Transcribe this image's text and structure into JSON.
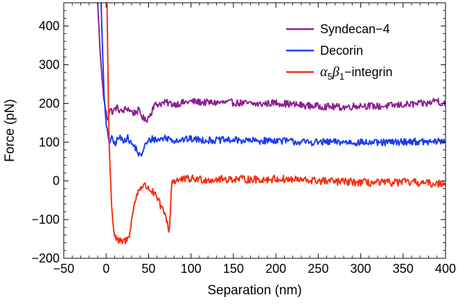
{
  "chart_data": {
    "type": "line",
    "title": "",
    "xlabel": "Separation (nm)",
    "ylabel": "Force (pN)",
    "xlim": [
      -50,
      400
    ],
    "ylim": [
      -200,
      460
    ],
    "x_ticks": [
      -50,
      0,
      50,
      100,
      150,
      200,
      250,
      300,
      350,
      400
    ],
    "y_ticks": [
      -200,
      -100,
      0,
      100,
      200,
      300,
      400
    ],
    "x_tick_labels": [
      "−50",
      "0",
      "50",
      "100",
      "150",
      "200",
      "250",
      "300",
      "350",
      "400"
    ],
    "y_tick_labels": [
      "−200",
      "−100",
      "0",
      "100",
      "200",
      "300",
      "400"
    ],
    "grid": false,
    "legend_position": "top-right",
    "series": [
      {
        "name": "Syndecan−4",
        "color": "#8e1f93",
        "noise": 9,
        "points": [
          [
            -10,
            460
          ],
          [
            -7,
            330
          ],
          [
            -4,
            240
          ],
          [
            -2,
            200
          ],
          [
            0,
            175
          ],
          [
            2,
            160
          ],
          [
            4,
            185
          ],
          [
            8,
            178
          ],
          [
            12,
            190
          ],
          [
            18,
            178
          ],
          [
            25,
            188
          ],
          [
            32,
            175
          ],
          [
            38,
            182
          ],
          [
            42,
            168
          ],
          [
            46,
            155
          ],
          [
            50,
            165
          ],
          [
            53,
            175
          ],
          [
            55,
            192
          ],
          [
            60,
            198
          ],
          [
            70,
            202
          ],
          [
            80,
            198
          ],
          [
            100,
            205
          ],
          [
            120,
            202
          ],
          [
            150,
            202
          ],
          [
            180,
            198
          ],
          [
            200,
            202
          ],
          [
            230,
            195
          ],
          [
            260,
            192
          ],
          [
            280,
            190
          ],
          [
            300,
            195
          ],
          [
            320,
            192
          ],
          [
            340,
            195
          ],
          [
            360,
            198
          ],
          [
            380,
            200
          ],
          [
            390,
            210
          ],
          [
            395,
            200
          ],
          [
            400,
            202
          ]
        ]
      },
      {
        "name": "Decorin",
        "color": "#1a3cf2",
        "noise": 9,
        "points": [
          [
            -6,
            460
          ],
          [
            -4,
            320
          ],
          [
            -2,
            200
          ],
          [
            0,
            145
          ],
          [
            2,
            115
          ],
          [
            4,
            100
          ],
          [
            6,
            110
          ],
          [
            10,
            95
          ],
          [
            15,
            112
          ],
          [
            20,
            105
          ],
          [
            25,
            112
          ],
          [
            30,
            95
          ],
          [
            35,
            85
          ],
          [
            38,
            70
          ],
          [
            41,
            60
          ],
          [
            43,
            78
          ],
          [
            46,
            92
          ],
          [
            50,
            102
          ],
          [
            55,
            110
          ],
          [
            60,
            105
          ],
          [
            70,
            112
          ],
          [
            80,
            105
          ],
          [
            100,
            108
          ],
          [
            120,
            105
          ],
          [
            150,
            105
          ],
          [
            180,
            103
          ],
          [
            200,
            105
          ],
          [
            230,
            100
          ],
          [
            260,
            100
          ],
          [
            290,
            100
          ],
          [
            320,
            98
          ],
          [
            340,
            100
          ],
          [
            360,
            102
          ],
          [
            380,
            100
          ],
          [
            400,
            103
          ]
        ]
      },
      {
        "name": "α₅β₁−integrin",
        "name_main_1": "α",
        "name_sub_1": "5",
        "name_main_2": "β",
        "name_sub_2": "1",
        "name_tail": "−integrin",
        "color": "#f62f10",
        "noise": 10,
        "points": [
          [
            1,
            460
          ],
          [
            2,
            300
          ],
          [
            3,
            150
          ],
          [
            4,
            60
          ],
          [
            6,
            -40
          ],
          [
            8,
            -110
          ],
          [
            10,
            -140
          ],
          [
            13,
            -155
          ],
          [
            18,
            -158
          ],
          [
            22,
            -155
          ],
          [
            26,
            -150
          ],
          [
            29,
            -115
          ],
          [
            32,
            -75
          ],
          [
            35,
            -45
          ],
          [
            38,
            -25
          ],
          [
            41,
            -15
          ],
          [
            45,
            -12
          ],
          [
            50,
            -18
          ],
          [
            55,
            -30
          ],
          [
            60,
            -45
          ],
          [
            65,
            -68
          ],
          [
            70,
            -90
          ],
          [
            73,
            -115
          ],
          [
            74,
            -135
          ],
          [
            75,
            -110
          ],
          [
            76,
            -60
          ],
          [
            77,
            -10
          ],
          [
            78,
            0
          ],
          [
            85,
            2
          ],
          [
            100,
            5
          ],
          [
            120,
            3
          ],
          [
            150,
            5
          ],
          [
            180,
            3
          ],
          [
            200,
            5
          ],
          [
            230,
            2
          ],
          [
            250,
            0
          ],
          [
            270,
            -2
          ],
          [
            290,
            -3
          ],
          [
            310,
            -5
          ],
          [
            330,
            -5
          ],
          [
            350,
            -3
          ],
          [
            370,
            -5
          ],
          [
            390,
            -8
          ],
          [
            400,
            -3
          ]
        ]
      }
    ]
  }
}
